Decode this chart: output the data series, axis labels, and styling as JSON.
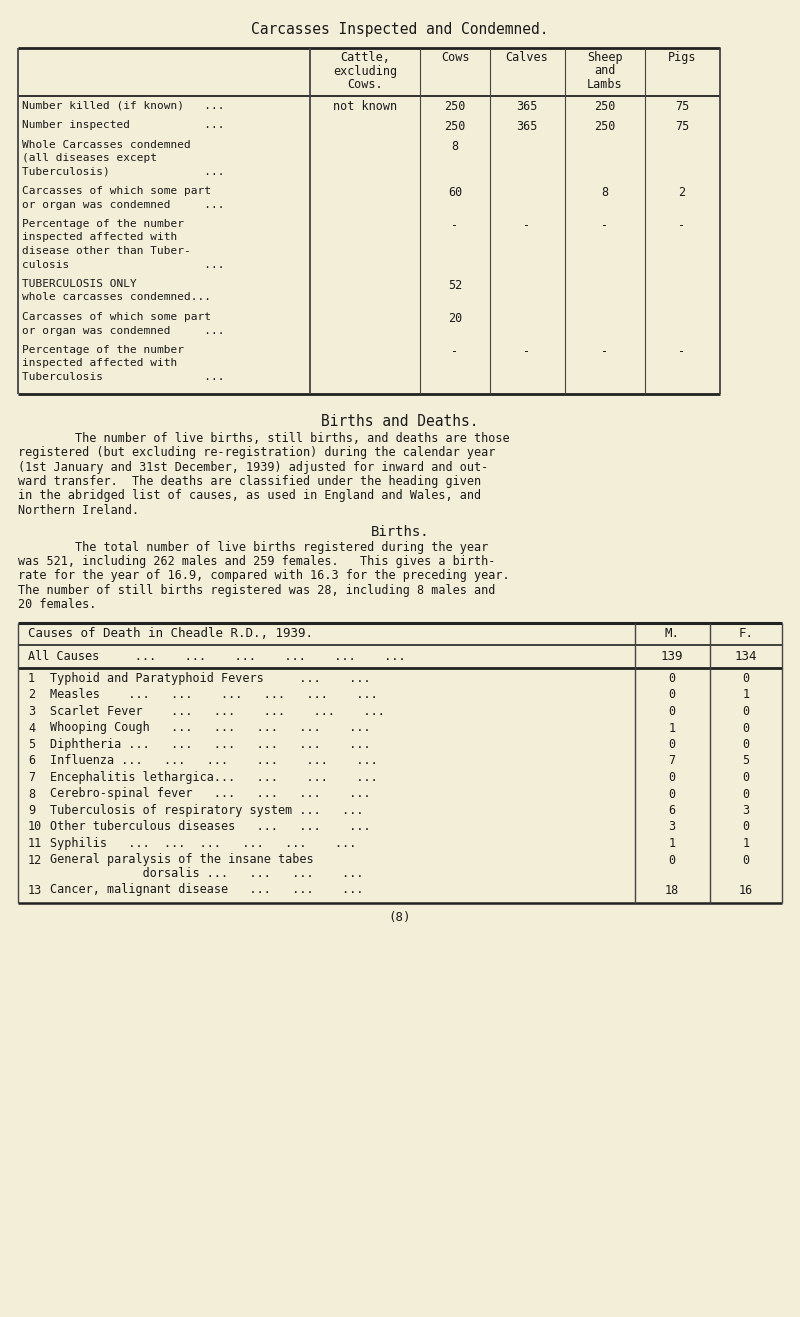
{
  "bg_color": "#f2eed8",
  "text_color": "#1a1a1a",
  "title1": "Carcasses Inspected and Condemned.",
  "table1_col_headers": [
    "Cattle,\nexcluding\nCows.",
    "Cows",
    "Calves",
    "Sheep\nand\nLambs",
    "Pigs"
  ],
  "table1_rows": [
    {
      "label": "Number killed (if known)   ...",
      "values": [
        "not known",
        "250",
        "365",
        "250",
        "75"
      ]
    },
    {
      "label": "Number inspected           ...",
      "values": [
        "",
        "250",
        "365",
        "250",
        "75"
      ]
    },
    {
      "label": "Whole Carcasses condemned\n(all diseases except\nTuberculosis)              ...",
      "values": [
        "",
        "8",
        "",
        "",
        ""
      ]
    },
    {
      "label": "Carcasses of which some part\nor organ was condemned     ...",
      "values": [
        "",
        "60",
        "",
        "8",
        "2"
      ]
    },
    {
      "label": "Percentage of the number\ninspected affected with\ndisease other than Tuber-\nculosis                    ...",
      "values": [
        "",
        "-",
        "-",
        "-",
        "-"
      ]
    },
    {
      "label": "TUBERCULOSIS ONLY\nwhole carcasses condemned...",
      "values": [
        "",
        "52",
        "",
        "",
        ""
      ]
    },
    {
      "label": "Carcasses of which some part\nor organ was condemned     ...",
      "values": [
        "",
        "20",
        "",
        "",
        ""
      ]
    },
    {
      "label": "Percentage of the number\ninspected affected with\nTuberculosis               ...",
      "values": [
        "",
        "-",
        "-",
        "-",
        "-"
      ]
    }
  ],
  "section2_title": "Births and Deaths.",
  "section2_para1": "        The number of live births, still births, and deaths are those\nregistered (but excluding re-registration) during the calendar year\n(1st January and 31st December, 1939) adjusted for inward and out-\nward transfer.  The deaths are classified under the heading given\nin the abridged list of causes, as used in England and Wales, and\nNorthern Ireland.",
  "section2_subtitle": "Births.",
  "section2_para2": "        The total number of live births registered during the year\nwas 521, including 262 males and 259 females.   This gives a birth-\nrate for the year of 16.9, compared with 16.3 for the preceding year.\nThe number of still births registered was 28, including 8 males and\n20 females.",
  "table2_title": "Causes of Death in Cheadle R.D., 1939.",
  "table2_col_m": "M.",
  "table2_col_f": "F.",
  "table2_all_causes_label": "All Causes     ...    ...    ...    ...    ...    ...",
  "table2_all_causes_m": "139",
  "table2_all_causes_f": "134",
  "table2_rows": [
    {
      "num": "1",
      "label": "Typhoid and Paratyphoid Fevers     ...    ...",
      "m": "0",
      "f": "0"
    },
    {
      "num": "2",
      "label": "Measles    ...   ...    ...   ...   ...    ...",
      "m": "0",
      "f": "1"
    },
    {
      "num": "3",
      "label": "Scarlet Fever    ...   ...    ...    ...    ...",
      "m": "0",
      "f": "0"
    },
    {
      "num": "4",
      "label": "Whooping Cough   ...   ...   ...   ...    ...",
      "m": "1",
      "f": "0"
    },
    {
      "num": "5",
      "label": "Diphtheria ...   ...   ...   ...   ...    ...",
      "m": "0",
      "f": "0"
    },
    {
      "num": "6",
      "label": "Influenza ...   ...   ...    ...    ...    ...",
      "m": "7",
      "f": "5"
    },
    {
      "num": "7",
      "label": "Encephalitis lethargica...   ...    ...    ...",
      "m": "0",
      "f": "0"
    },
    {
      "num": "8",
      "label": "Cerebro-spinal fever   ...   ...   ...    ...",
      "m": "0",
      "f": "0"
    },
    {
      "num": "9",
      "label": "Tuberculosis of respiratory system ...   ...",
      "m": "6",
      "f": "3"
    },
    {
      "num": "10",
      "label": "Other tuberculous diseases   ...   ...    ...",
      "m": "3",
      "f": "0"
    },
    {
      "num": "11",
      "label": "Syphilis   ...  ...  ...   ...   ...    ...",
      "m": "1",
      "f": "1"
    },
    {
      "num": "12",
      "label": "General paralysis of the insane tabes\n             dorsalis ...   ...   ...    ...",
      "m": "0",
      "f": "0"
    },
    {
      "num": "13",
      "label": "Cancer, malignant disease   ...   ...    ...",
      "m": "18",
      "f": "16"
    }
  ],
  "footer": "(8)",
  "line_color": "#444444",
  "heavy_line_color": "#222222"
}
